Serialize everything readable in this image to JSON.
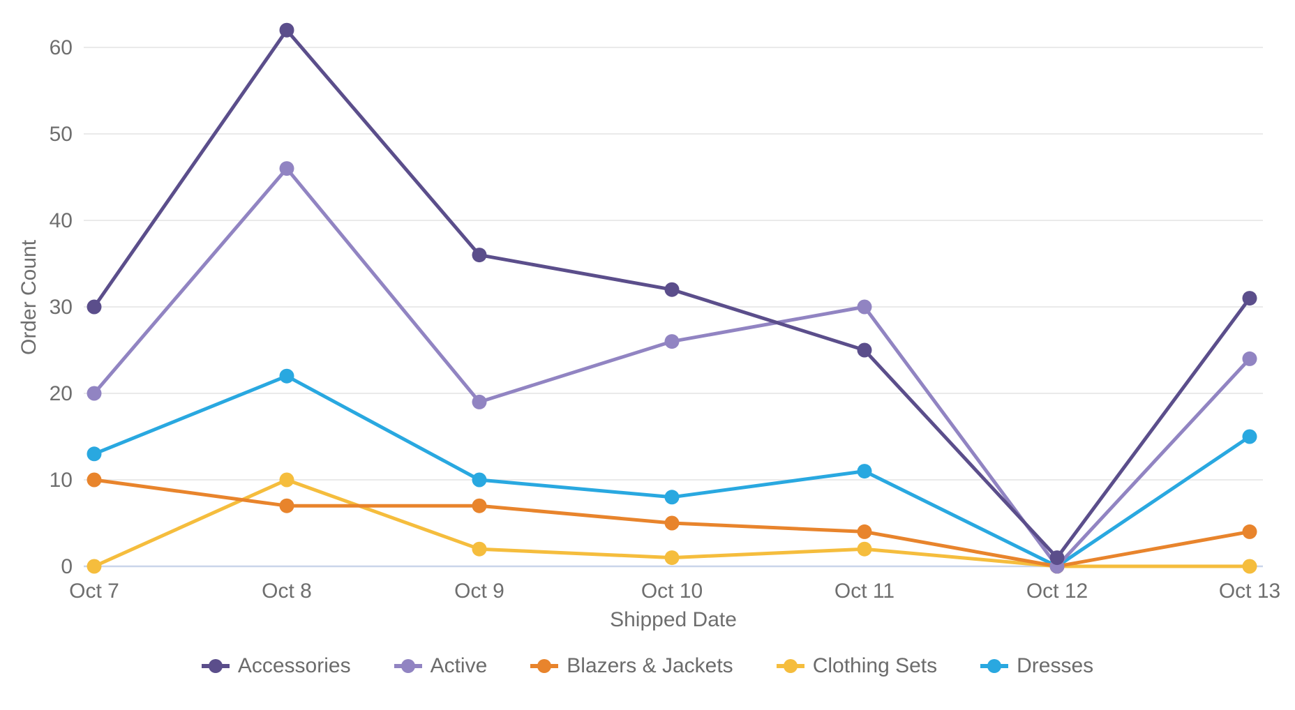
{
  "chart_data": {
    "type": "line",
    "title": "",
    "xlabel": "Shipped Date",
    "ylabel": "Order Count",
    "categories": [
      "Oct 7",
      "Oct 8",
      "Oct 9",
      "Oct 10",
      "Oct 11",
      "Oct 12",
      "Oct 13"
    ],
    "series": [
      {
        "name": "Accessories",
        "color": "#5b4e8b",
        "values": [
          30,
          62,
          36,
          32,
          25,
          1,
          31
        ]
      },
      {
        "name": "Active",
        "color": "#9184c2",
        "values": [
          20,
          46,
          19,
          26,
          30,
          0,
          24
        ]
      },
      {
        "name": "Blazers & Jackets",
        "color": "#e8842c",
        "values": [
          10,
          7,
          7,
          5,
          4,
          0,
          4
        ]
      },
      {
        "name": "Clothing Sets",
        "color": "#f5bd3d",
        "values": [
          0,
          10,
          2,
          1,
          2,
          0,
          0
        ]
      },
      {
        "name": "Dresses",
        "color": "#29a8e0",
        "values": [
          13,
          22,
          10,
          8,
          11,
          0,
          15
        ]
      }
    ],
    "y_ticks": [
      0,
      10,
      20,
      30,
      40,
      50,
      60
    ],
    "ylim": [
      0,
      62
    ],
    "grid": "horizontal",
    "legend_position": "bottom",
    "colors": {
      "gridline": "#eaeaea",
      "baseline": "#c9d5ea",
      "tick_text": "#6e6e6e"
    }
  }
}
